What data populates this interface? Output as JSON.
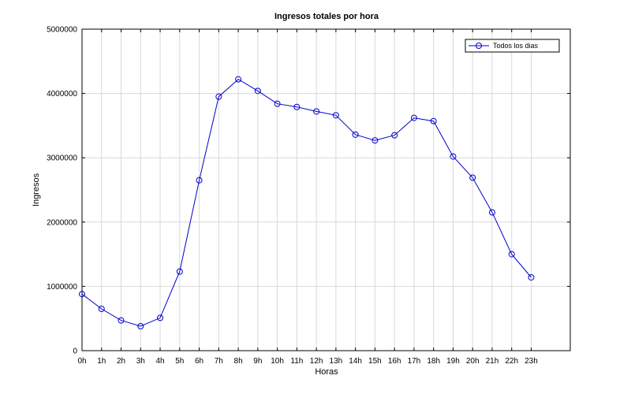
{
  "chart_data": {
    "type": "line",
    "title": "Ingresos totales por hora",
    "xlabel": "Horas",
    "ylabel": "Ingresos",
    "categories": [
      "0h",
      "1h",
      "2h",
      "3h",
      "4h",
      "5h",
      "6h",
      "7h",
      "8h",
      "9h",
      "10h",
      "11h",
      "12h",
      "13h",
      "14h",
      "15h",
      "16h",
      "17h",
      "18h",
      "19h",
      "20h",
      "21h",
      "22h",
      "23h"
    ],
    "x_range": [
      0,
      25
    ],
    "ylim": [
      0,
      5000000
    ],
    "y_ticks": [
      0,
      1000000,
      2000000,
      3000000,
      4000000,
      5000000
    ],
    "y_tick_labels": [
      "0",
      "1000000",
      "2000000",
      "3000000",
      "4000000",
      "5000000"
    ],
    "grid": true,
    "legend_position": "top-right",
    "series": [
      {
        "name": "Todos los dias",
        "color": "#0000cc",
        "marker": "circle",
        "values": [
          880000,
          650000,
          470000,
          380000,
          510000,
          1230000,
          2650000,
          3950000,
          4220000,
          4040000,
          3840000,
          3790000,
          3720000,
          3660000,
          3360000,
          3270000,
          3350000,
          3620000,
          3570000,
          3020000,
          2690000,
          2150000,
          1500000,
          1140000
        ]
      }
    ]
  }
}
